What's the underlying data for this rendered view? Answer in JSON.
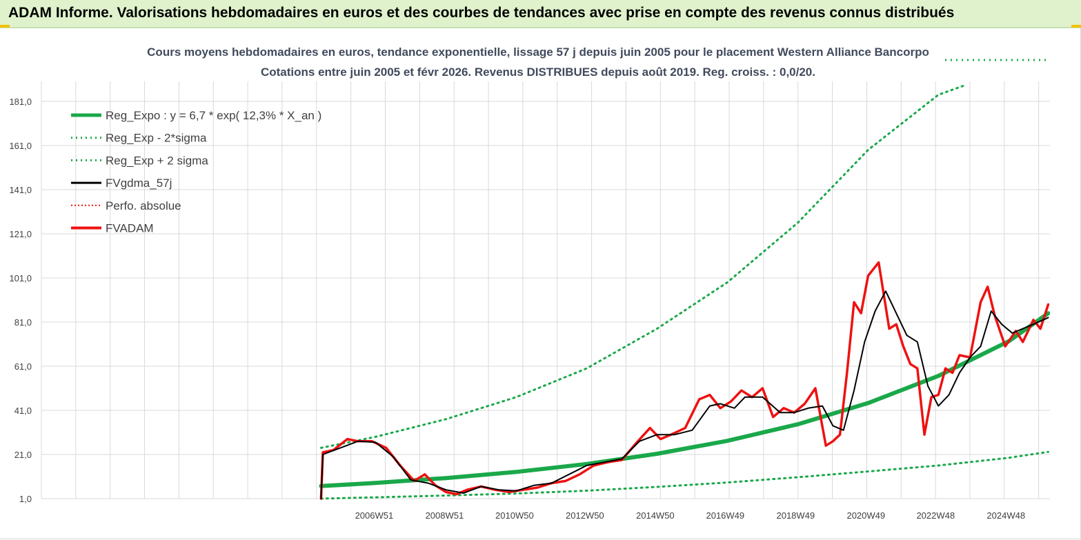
{
  "header": {
    "title": "ADAM Informe. Valorisations hebdomadaires en euros et des courbes de tendances avec prise en compte des revenus connus distribués"
  },
  "colors": {
    "banner_bg": "#dff2cc",
    "trend_green": "#1aa84a",
    "band_green": "#1aa84a",
    "smoothed_black": "#000000",
    "price_red": "#ee1111",
    "grid": "#d9d9d9",
    "title_text": "#404a5c"
  },
  "chart_data": {
    "type": "line",
    "title_line1": "Cours moyens hebdomadaires en euros, tendance exponentielle, lissage 57 j depuis juin 2005 pour le placement Western Alliance Bancorpo",
    "title_line2": "Cotations entre juin 2005 et févr 2026. Revenus DISTRIBUES depuis août 2019. Reg. croiss. : 0,0/20.",
    "y_tick_labels": [
      "1,0",
      "21,0",
      "41,0",
      "61,0",
      "81,0",
      "101,0",
      "121,0",
      "141,0",
      "161,0",
      "181,0"
    ],
    "ylim": [
      1,
      181
    ],
    "x_tick_labels": [
      "2006W51",
      "2008W51",
      "2010W50",
      "2012W50",
      "2014W50",
      "2016W49",
      "2018W49",
      "2020W49",
      "2022W48",
      "2024W48"
    ],
    "x_tick_years": [
      2006.96,
      2008.96,
      2010.95,
      2012.95,
      2014.95,
      2016.94,
      2018.94,
      2020.94,
      2022.92,
      2024.92
    ],
    "xlim": [
      1997.5,
      2026.17
    ],
    "data_start": 2005.45,
    "data_end": 2026.12,
    "legend": [
      {
        "label": "Reg_Expo : y = 6,7 * exp( 12,3% *  X_an )",
        "style": "thick-green"
      },
      {
        "label": "Reg_Exp - 2*sigma",
        "style": "dotted-green"
      },
      {
        "label": "Reg_Exp + 2 sigma",
        "style": "dotted-green"
      },
      {
        "label": "FVgdma_57j",
        "style": "black"
      },
      {
        "label": "Perfo. absolue",
        "style": "dotted-red"
      },
      {
        "label": "FVADAM",
        "style": "thick-red"
      }
    ],
    "legend_position": "top-left",
    "grid": true,
    "series": [
      {
        "name": "Reg_Expo : y = 6,7 * exp( 12,3% *  X_an )",
        "x": [
          2005.45,
          2007.0,
          2009.0,
          2011.0,
          2013.0,
          2015.0,
          2017.0,
          2019.0,
          2021.0,
          2023.0,
          2025.0,
          2026.12
        ],
        "y": [
          6.7,
          8.1,
          10.3,
          13.1,
          16.7,
          21.3,
          27.2,
          34.7,
          44.3,
          56.6,
          72.3,
          85.0
        ]
      },
      {
        "name": "Reg_Exp - 2*sigma",
        "x": [
          2005.45,
          2007.0,
          2009.0,
          2011.0,
          2013.0,
          2015.0,
          2017.0,
          2019.0,
          2021.0,
          2023.0,
          2025.0,
          2026.12
        ],
        "y": [
          1.0,
          1.6,
          2.4,
          3.3,
          4.6,
          6.3,
          8.3,
          10.7,
          13.3,
          16.0,
          19.5,
          22.2
        ]
      },
      {
        "name": "Reg_Exp + 2 sigma",
        "x": [
          2005.45,
          2007.0,
          2009.0,
          2011.0,
          2013.0,
          2015.0,
          2017.0,
          2019.0,
          2021.0,
          2023.0,
          2023.7
        ],
        "y": [
          24.0,
          29.0,
          37.0,
          47.0,
          60.0,
          78.0,
          99.0,
          126.0,
          159.0,
          184.0,
          188.0
        ]
      },
      {
        "name": "FVgdma_57j",
        "x": [
          2005.45,
          2005.5,
          2006.0,
          2006.5,
          2007.0,
          2007.5,
          2008.0,
          2008.5,
          2009.0,
          2009.5,
          2010.0,
          2010.5,
          2011.0,
          2011.5,
          2012.0,
          2012.5,
          2013.0,
          2013.5,
          2014.0,
          2014.5,
          2015.0,
          2015.5,
          2016.0,
          2016.5,
          2016.8,
          2017.2,
          2017.5,
          2018.0,
          2018.5,
          2018.9,
          2019.3,
          2019.7,
          2020.0,
          2020.3,
          2020.6,
          2020.9,
          2021.2,
          2021.5,
          2021.8,
          2022.1,
          2022.4,
          2022.7,
          2023.0,
          2023.3,
          2023.6,
          2023.9,
          2024.2,
          2024.5,
          2024.8,
          2025.1,
          2025.4,
          2025.7,
          2026.12
        ],
        "y": [
          1.0,
          21.0,
          24.0,
          27.0,
          26.5,
          20.0,
          9.5,
          8.0,
          5.0,
          3.5,
          6.5,
          5.0,
          4.5,
          7.0,
          8.0,
          12.0,
          16.0,
          17.5,
          19.0,
          27.0,
          30.0,
          30.0,
          32.0,
          43.0,
          44.0,
          42.0,
          47.0,
          47.0,
          40.0,
          40.0,
          42.0,
          43.0,
          34.0,
          32.0,
          50.0,
          72.0,
          86.0,
          95.0,
          85.0,
          75.0,
          72.0,
          52.0,
          43.0,
          48.0,
          58.0,
          65.0,
          70.0,
          86.0,
          80.0,
          76.0,
          78.0,
          80.0,
          83.0
        ]
      },
      {
        "name": "FVADAM",
        "x": [
          2005.45,
          2005.5,
          2005.8,
          2006.2,
          2006.5,
          2006.9,
          2007.3,
          2007.7,
          2008.1,
          2008.4,
          2008.7,
          2009.0,
          2009.3,
          2009.6,
          2010.0,
          2010.4,
          2010.8,
          2011.2,
          2011.6,
          2012.0,
          2012.4,
          2012.8,
          2013.2,
          2013.6,
          2014.0,
          2014.4,
          2014.8,
          2015.1,
          2015.4,
          2015.8,
          2016.2,
          2016.5,
          2016.8,
          2017.1,
          2017.4,
          2017.7,
          2018.0,
          2018.3,
          2018.6,
          2018.9,
          2019.2,
          2019.5,
          2019.8,
          2020.0,
          2020.2,
          2020.4,
          2020.6,
          2020.8,
          2021.0,
          2021.3,
          2021.6,
          2021.8,
          2022.0,
          2022.2,
          2022.4,
          2022.6,
          2022.8,
          2023.0,
          2023.2,
          2023.4,
          2023.6,
          2023.9,
          2024.2,
          2024.4,
          2024.6,
          2024.9,
          2025.2,
          2025.4,
          2025.7,
          2025.9,
          2026.12
        ],
        "y": [
          1.0,
          22.0,
          23.0,
          28.0,
          27.0,
          27.0,
          24.0,
          16.0,
          9.0,
          12.0,
          7.0,
          4.0,
          3.0,
          5.0,
          6.5,
          5.0,
          4.0,
          5.0,
          6.0,
          8.0,
          9.0,
          12.0,
          16.0,
          17.5,
          18.5,
          26.0,
          33.0,
          28.0,
          30.0,
          33.0,
          46.0,
          48.0,
          42.0,
          45.0,
          50.0,
          47.0,
          51.0,
          38.0,
          42.0,
          40.0,
          44.0,
          51.0,
          25.0,
          27.0,
          30.0,
          58.0,
          90.0,
          85.0,
          102.0,
          108.0,
          78.0,
          80.0,
          70.0,
          62.0,
          60.0,
          30.0,
          47.0,
          48.0,
          60.0,
          58.0,
          66.0,
          65.0,
          90.0,
          97.0,
          84.0,
          70.0,
          77.0,
          72.0,
          82.0,
          78.0,
          89.0
        ]
      }
    ]
  }
}
